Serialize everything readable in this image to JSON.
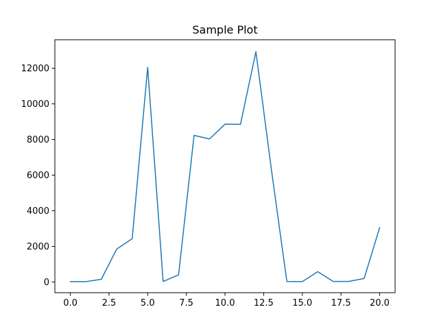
{
  "chart_data": {
    "type": "line",
    "title": "Sample Plot",
    "xlabel": "",
    "ylabel": "",
    "xlim": [
      -1,
      21
    ],
    "ylim": [
      -600,
      13600
    ],
    "xticks": [
      0.0,
      2.5,
      5.0,
      7.5,
      10.0,
      12.5,
      15.0,
      17.5,
      20.0
    ],
    "xtick_labels": [
      "0.0",
      "2.5",
      "5.0",
      "7.5",
      "10.0",
      "12.5",
      "15.0",
      "17.5",
      "20.0"
    ],
    "yticks": [
      0,
      2000,
      4000,
      6000,
      8000,
      10000,
      12000
    ],
    "ytick_labels": [
      "0",
      "2000",
      "4000",
      "6000",
      "8000",
      "10000",
      "12000"
    ],
    "grid": false,
    "series": [
      {
        "color": "#1f77b4",
        "x": [
          0,
          1,
          2,
          3,
          4,
          5,
          6,
          7,
          8,
          9,
          10,
          11,
          12,
          13,
          14,
          15,
          16,
          17,
          18,
          19,
          20
        ],
        "values": [
          20,
          20,
          150,
          1850,
          2430,
          12050,
          30,
          400,
          8230,
          8030,
          8860,
          8850,
          12930,
          6320,
          30,
          20,
          580,
          30,
          30,
          200,
          3050
        ]
      }
    ]
  }
}
